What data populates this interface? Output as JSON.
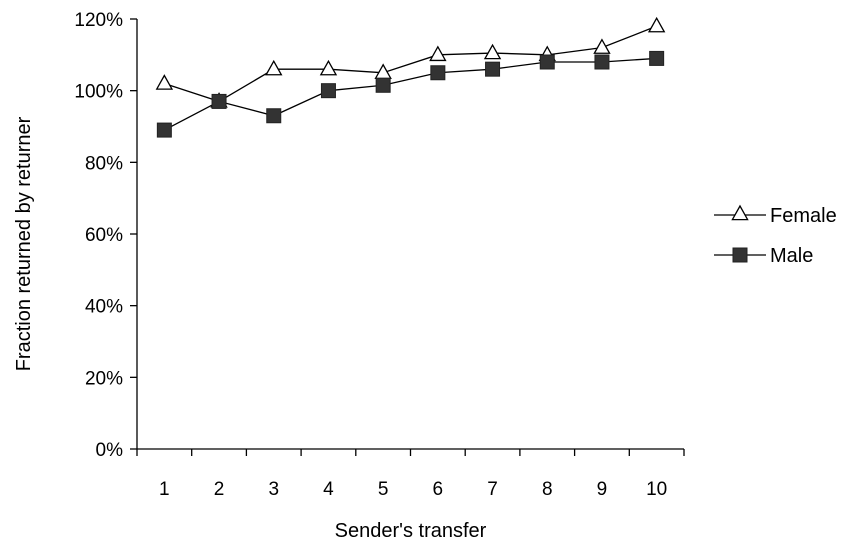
{
  "chart_data": {
    "type": "line",
    "title": "",
    "xlabel": "Sender's transfer",
    "ylabel": "Fraction returned by returner",
    "categories": [
      "1",
      "2",
      "3",
      "4",
      "5",
      "6",
      "7",
      "8",
      "9",
      "10"
    ],
    "ylim": [
      0,
      120
    ],
    "y_ticks": [
      0,
      20,
      40,
      60,
      80,
      100,
      120
    ],
    "y_tick_labels": [
      "0%",
      "20%",
      "40%",
      "60%",
      "80%",
      "100%",
      "120%"
    ],
    "grid": false,
    "legend_position": "right",
    "series": [
      {
        "name": "Female",
        "marker": "open-triangle",
        "color": "#000000",
        "values": [
          102,
          97,
          106,
          106,
          105,
          110,
          110.5,
          110,
          112,
          118
        ]
      },
      {
        "name": "Male",
        "marker": "filled-square",
        "color": "#000000",
        "values": [
          89,
          97,
          93,
          100,
          101.5,
          105,
          106,
          108,
          108,
          109
        ]
      }
    ]
  }
}
